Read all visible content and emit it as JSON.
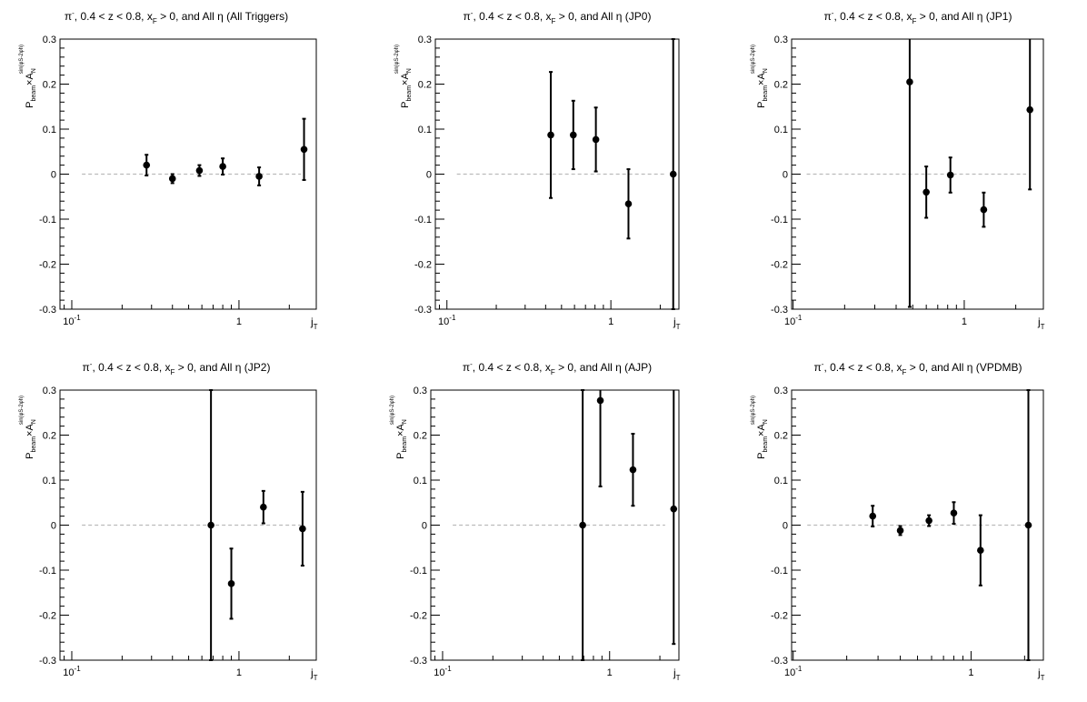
{
  "chart_data": [
    {
      "type": "scatter",
      "title": "π⁻, 0.4 < z < 0.8, x_F > 0, and All η (All Triggers)",
      "xlabel": "j_T",
      "ylabel": "P_beam × A_N^sin(φ_S − 2φ_h)",
      "xscale": "log",
      "ylim": [
        -0.3,
        0.3
      ],
      "x": [
        0.28,
        0.4,
        0.58,
        0.8,
        1.32,
        2.45
      ],
      "y": [
        0.02,
        -0.01,
        0.008,
        0.017,
        -0.005,
        0.055
      ],
      "yerr": [
        0.023,
        0.01,
        0.012,
        0.018,
        0.02,
        0.068
      ]
    },
    {
      "type": "scatter",
      "title": "π⁻, 0.4 < z < 0.8, x_F > 0, and All η (JP0)",
      "xlabel": "j_T",
      "ylabel": "P_beam × A_N^sin(φ_S − 2φ_h)",
      "xscale": "log",
      "ylim": [
        -0.3,
        0.3
      ],
      "x": [
        0.43,
        0.59,
        0.81,
        1.28,
        2.4
      ],
      "y": [
        0.087,
        0.087,
        0.077,
        -0.066,
        0.0
      ],
      "yerr": [
        0.14,
        0.076,
        0.071,
        0.077,
        0.3
      ]
    },
    {
      "type": "scatter",
      "title": "π⁻, 0.4 < z < 0.8, x_F > 0, and All η (JP1)",
      "xlabel": "j_T",
      "ylabel": "P_beam × A_N^sin(φ_S − 2φ_h)",
      "xscale": "log",
      "ylim": [
        -0.3,
        0.3
      ],
      "x": [
        0.48,
        0.6,
        0.83,
        1.3,
        2.42
      ],
      "y": [
        0.205,
        -0.04,
        -0.002,
        -0.079,
        0.143
      ],
      "yerr": [
        0.5,
        0.057,
        0.039,
        0.038,
        0.177
      ]
    },
    {
      "type": "scatter",
      "title": "π⁻, 0.4 < z < 0.8, x_F > 0, and All η (JP2)",
      "xlabel": "j_T",
      "ylabel": "P_beam × A_N^sin(φ_S − 2φ_h)",
      "xscale": "log",
      "ylim": [
        -0.3,
        0.3
      ],
      "x": [
        0.68,
        0.9,
        1.4,
        2.4
      ],
      "y": [
        0.0,
        -0.13,
        0.04,
        -0.008
      ],
      "yerr": [
        0.3,
        0.078,
        0.036,
        0.082
      ]
    },
    {
      "type": "scatter",
      "title": "π⁻, 0.4 < z < 0.8, x_F > 0, and All η (AJP)",
      "xlabel": "j_T",
      "ylabel": "P_beam × A_N^sin(φ_S − 2φ_h)",
      "xscale": "log",
      "ylim": [
        -0.3,
        0.3
      ],
      "x": [
        0.69,
        0.88,
        1.38,
        2.42
      ],
      "y": [
        0.0,
        0.277,
        0.123,
        0.036
      ],
      "yerr": [
        0.3,
        0.191,
        0.08,
        0.3
      ]
    },
    {
      "type": "scatter",
      "title": "π⁻, 0.4 < z < 0.8, x_F > 0, and All η (VPDMB)",
      "xlabel": "j_T",
      "ylabel": "P_beam × A_N^sin(φ_S − 2φ_h)",
      "xscale": "log",
      "ylim": [
        -0.3,
        0.3
      ],
      "x": [
        0.28,
        0.4,
        0.58,
        0.8,
        1.13,
        2.1
      ],
      "y": [
        0.02,
        -0.012,
        0.01,
        0.027,
        -0.056,
        0.0
      ],
      "yerr": [
        0.023,
        0.01,
        0.012,
        0.024,
        0.078,
        0.3
      ]
    }
  ],
  "shared": {
    "yticks": [
      -0.3,
      -0.2,
      -0.1,
      0,
      0.1,
      0.2,
      0.3
    ],
    "ytick_labels": [
      "-0.3",
      "-0.2",
      "-0.1",
      "0",
      "0.1",
      "0.2",
      "0.3"
    ],
    "xmajor": [
      0.1,
      1
    ],
    "xmajor_labels": [
      "10",
      "1"
    ],
    "x_exponent": "-1",
    "ylabel_p": "P",
    "ylabel_beam": "beam",
    "ylabel_times": "×",
    "ylabel_a": "A",
    "ylabel_n": "N",
    "ylabel_sup": "sin(φ",
    "ylabel_sup_s": "S",
    "ylabel_sup_mid": "-2φ",
    "ylabel_sup_h": "h",
    "ylabel_sup_end": ")",
    "xlabel_j": "j",
    "xlabel_t": "T",
    "reference_line": 0,
    "colors": {
      "marker": "#000000",
      "reference": "#bbbbbb",
      "frame": "#000000"
    }
  }
}
